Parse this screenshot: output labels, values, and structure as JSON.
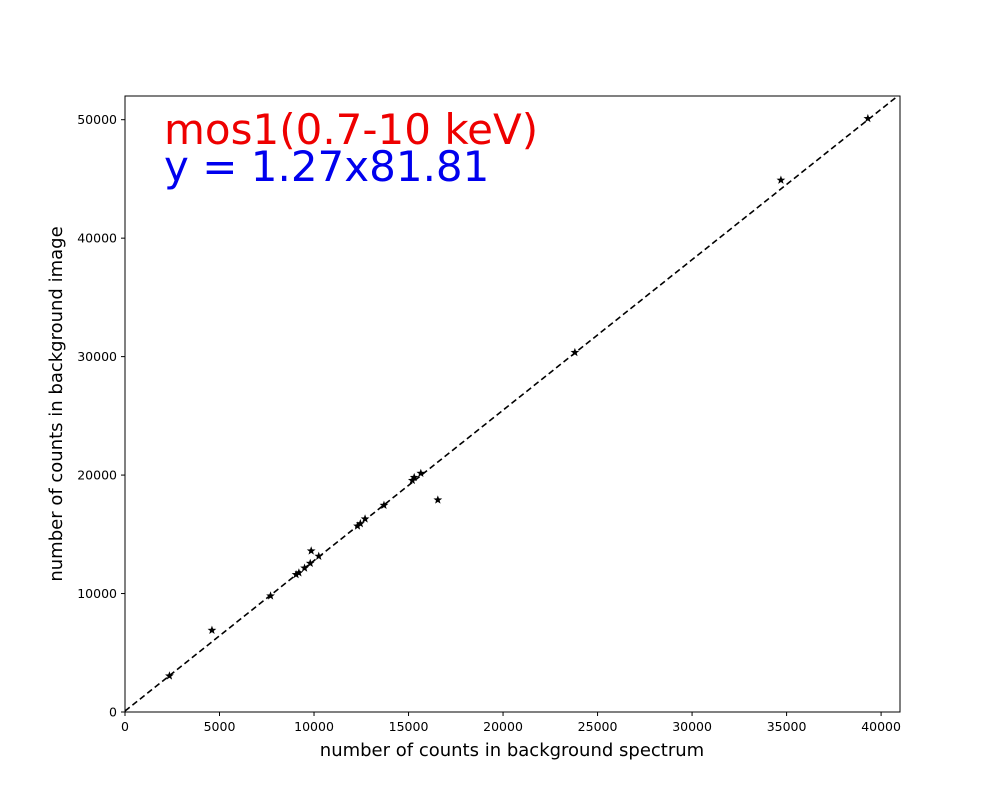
{
  "chart_data": {
    "type": "scatter",
    "xlabel": "number of counts in background spectrum",
    "ylabel": "number of counts in background image",
    "xlim": [
      0,
      41000
    ],
    "ylim": [
      0,
      52000
    ],
    "x_ticks": [
      0,
      5000,
      10000,
      15000,
      20000,
      25000,
      30000,
      35000,
      40000
    ],
    "y_ticks": [
      0,
      10000,
      20000,
      30000,
      40000,
      50000
    ],
    "grid": false,
    "marker": "star",
    "marker_color": "#000000",
    "points": [
      {
        "x": 2350,
        "y": 3050
      },
      {
        "x": 4600,
        "y": 6900
      },
      {
        "x": 7700,
        "y": 9800
      },
      {
        "x": 9050,
        "y": 11600
      },
      {
        "x": 9200,
        "y": 11750
      },
      {
        "x": 9500,
        "y": 12150
      },
      {
        "x": 9800,
        "y": 12550
      },
      {
        "x": 9850,
        "y": 13600
      },
      {
        "x": 10250,
        "y": 13150
      },
      {
        "x": 12300,
        "y": 15700
      },
      {
        "x": 12450,
        "y": 15900
      },
      {
        "x": 12700,
        "y": 16300
      },
      {
        "x": 13700,
        "y": 17450
      },
      {
        "x": 15200,
        "y": 19550
      },
      {
        "x": 15300,
        "y": 19800
      },
      {
        "x": 15650,
        "y": 20150
      },
      {
        "x": 16550,
        "y": 17900
      },
      {
        "x": 23800,
        "y": 30350
      },
      {
        "x": 34700,
        "y": 44900
      },
      {
        "x": 39300,
        "y": 50100
      }
    ],
    "fit_line": {
      "slope": 1.27,
      "intercept": 81.81,
      "style": "dashed",
      "color": "#000000"
    },
    "annotations": [
      {
        "text": "mos1(0.7-10 keV)",
        "color": "#ee0000"
      },
      {
        "text": "y = 1.27x81.81",
        "color": "#0000ee"
      }
    ]
  }
}
